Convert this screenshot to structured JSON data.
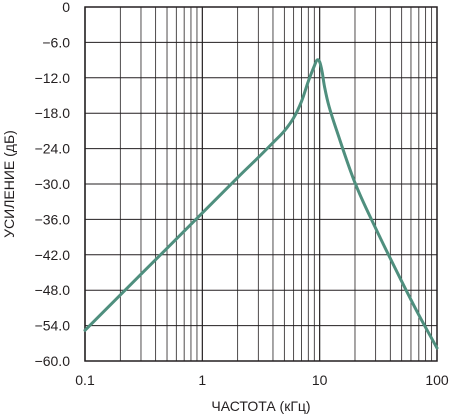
{
  "chart_data": {
    "type": "line",
    "title": "",
    "xlabel": "ЧАСТОТА (кГц)",
    "ylabel": "УСИЛЕНИЕ (дБ)",
    "x_scale": "log",
    "xlim": [
      0.1,
      100
    ],
    "ylim": [
      -60,
      0
    ],
    "x_ticks": [
      0.1,
      1,
      10,
      100
    ],
    "x_tick_labels": [
      "0.1",
      "1",
      "10",
      "100"
    ],
    "y_ticks": [
      0,
      -6,
      -12,
      -18,
      -24,
      -30,
      -36,
      -42,
      -48,
      -54,
      -60
    ],
    "y_tick_labels": [
      "0",
      "−6.0",
      "−12.0",
      "−18.0",
      "−24.0",
      "−30.0",
      "−36.0",
      "−42.0",
      "−48.0",
      "−54.0",
      "−60.0"
    ],
    "grid": true,
    "colors": {
      "line": "#4f8f7e",
      "grid": "#231f20",
      "frame": "#231f20"
    },
    "series": [
      {
        "x": [
          0.1,
          0.2,
          0.5,
          1,
          2,
          3,
          4,
          5,
          6,
          7,
          8,
          9,
          9.5,
          10,
          10.5,
          11,
          12,
          14,
          20,
          30,
          50,
          70,
          100
        ],
        "y": [
          -54.8,
          -48.8,
          -40.9,
          -34.9,
          -28.9,
          -25.5,
          -23.0,
          -21.0,
          -18.8,
          -16.0,
          -12.6,
          -10.0,
          -9.0,
          -9.3,
          -11.0,
          -13.5,
          -16.8,
          -21.0,
          -29.8,
          -37.5,
          -46.5,
          -52.2,
          -57.8
        ]
      }
    ]
  }
}
